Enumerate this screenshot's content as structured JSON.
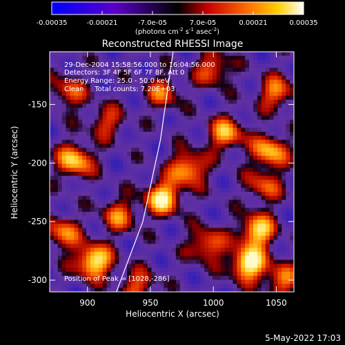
{
  "colorbar": {
    "tick_labels": [
      "-0.00035",
      "-0.00021",
      "-7.0e-05",
      "7.0e-05",
      "0.00021",
      "0.00035"
    ],
    "ticks": [
      -0.00035,
      -0.00021,
      -7e-05,
      7e-05,
      0.00021,
      0.00035
    ],
    "range": [
      -0.00035,
      0.00035
    ],
    "unit_label_pre": "(photons cm",
    "unit_exp1": "-2",
    "unit_mid1": " s",
    "unit_exp2": "-1",
    "unit_mid2": " asec",
    "unit_exp3": "-2",
    "unit_post": ")"
  },
  "chart_data": {
    "type": "heatmap",
    "title": "Reconstructed RHESSI Image",
    "xlabel": "Heliocentric X (arcsec)",
    "ylabel": "Heliocentric Y (arcsec)",
    "xlim": [
      870,
      1064
    ],
    "ylim": [
      -310,
      -105
    ],
    "xticks": [
      900,
      950,
      1000,
      1050
    ],
    "yticks": [
      -150,
      -200,
      -250,
      -300
    ],
    "annotations": [
      "29-Dec-2004 15:58:56.000 to 16:04:56.000",
      "Detectors: 3F 4F 5F 6F 7F 8F, Att 0",
      "Energy Range: 25.0 - 50.0 keV",
      "Clean     Total counts: 7.20E+03"
    ],
    "peak_label": "Position of Peak = [1028,-286]",
    "peak": [
      1028,
      -286
    ],
    "limb_line": [
      [
        923,
        -310
      ],
      [
        944,
        -250
      ],
      [
        958,
        -180
      ],
      [
        968,
        -105
      ]
    ],
    "hot_spots": [
      {
        "x": 905,
        "y": -284,
        "v": 0.95
      },
      {
        "x": 1028,
        "y": -286,
        "v": 1.0
      },
      {
        "x": 1035,
        "y": -258,
        "v": 0.85
      },
      {
        "x": 960,
        "y": -230,
        "v": 0.9
      },
      {
        "x": 980,
        "y": -205,
        "v": 0.75
      },
      {
        "x": 890,
        "y": -198,
        "v": 0.8
      },
      {
        "x": 1045,
        "y": -190,
        "v": 0.75
      },
      {
        "x": 1010,
        "y": -175,
        "v": 0.7
      },
      {
        "x": 925,
        "y": -245,
        "v": 0.55
      },
      {
        "x": 880,
        "y": -260,
        "v": 0.6
      },
      {
        "x": 940,
        "y": -305,
        "v": 0.5
      },
      {
        "x": 995,
        "y": -270,
        "v": 0.6
      },
      {
        "x": 1055,
        "y": -300,
        "v": 0.55
      },
      {
        "x": 915,
        "y": -165,
        "v": 0.45
      },
      {
        "x": 960,
        "y": -140,
        "v": 0.5
      },
      {
        "x": 1000,
        "y": -120,
        "v": 0.55
      },
      {
        "x": 1050,
        "y": -140,
        "v": 0.6
      },
      {
        "x": 885,
        "y": -140,
        "v": 0.5
      },
      {
        "x": 1040,
        "y": -220,
        "v": 0.5
      }
    ]
  },
  "footer": {
    "timestamp": "5-May-2022 17:03"
  }
}
